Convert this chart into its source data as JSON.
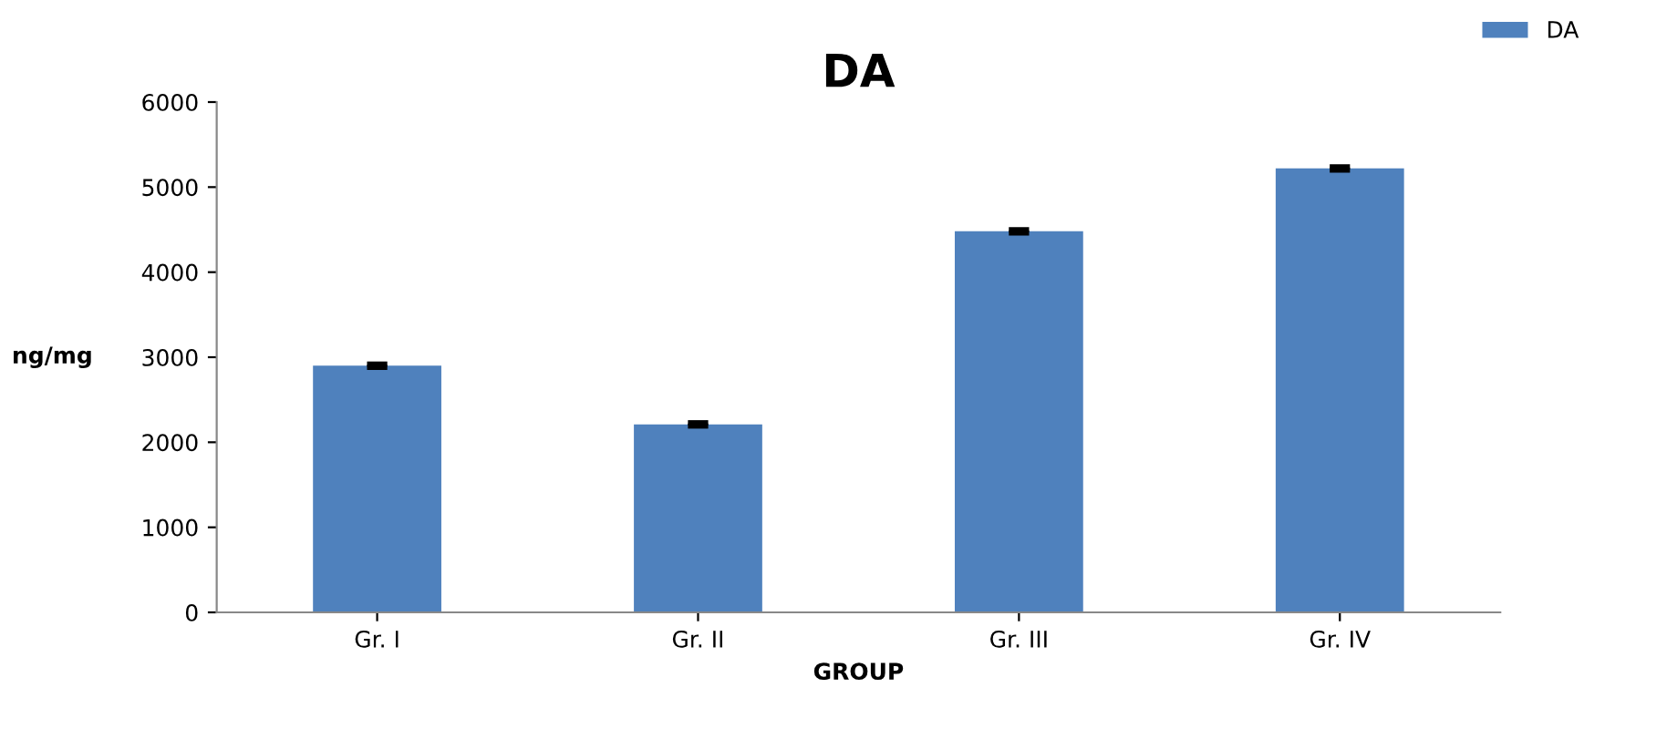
{
  "chart_data": {
    "type": "bar",
    "title": "DA",
    "xlabel": "GROUP",
    "ylabel": "ng/mg",
    "categories": [
      "Gr. I",
      "Gr. II",
      "Gr. III",
      "Gr. IV"
    ],
    "series": [
      {
        "name": "DA",
        "color": "#4f81bd",
        "values": [
          2900,
          2210,
          4480,
          5220
        ],
        "errors": [
          20,
          20,
          20,
          20
        ]
      }
    ],
    "ylim": [
      0,
      6000
    ],
    "yticks": [
      0,
      1000,
      2000,
      3000,
      4000,
      5000,
      6000
    ],
    "grid": false,
    "legend": "top right"
  }
}
